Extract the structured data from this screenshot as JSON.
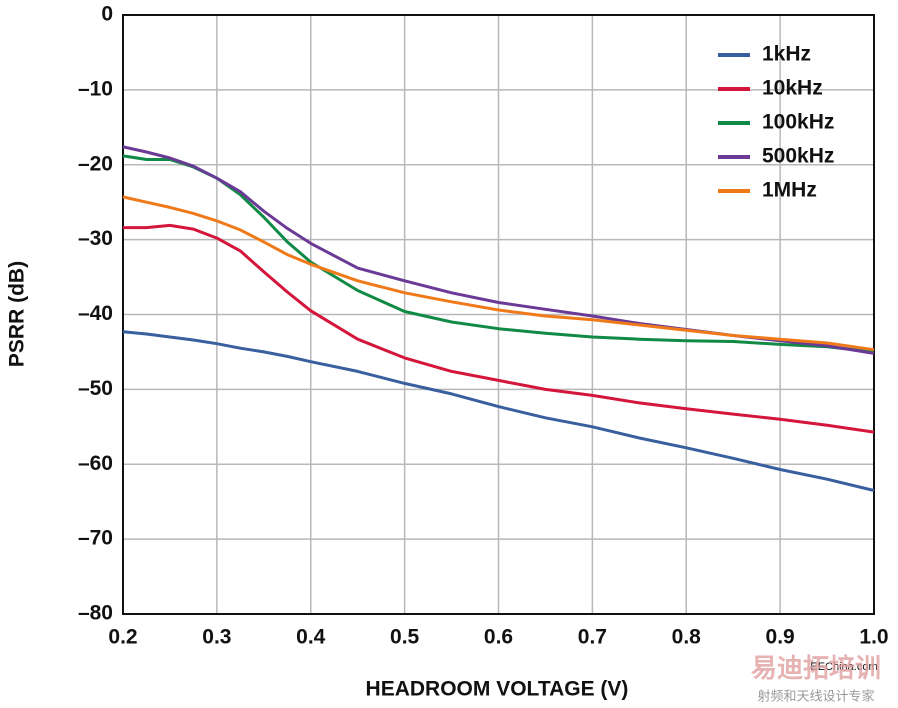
{
  "chart_data": {
    "type": "line",
    "xlabel": "HEADROOM VOLTAGE (V)",
    "ylabel": "PSRR (dB)",
    "x": [
      0.2,
      0.225,
      0.25,
      0.275,
      0.3,
      0.325,
      0.35,
      0.375,
      0.4,
      0.45,
      0.5,
      0.55,
      0.6,
      0.65,
      0.7,
      0.75,
      0.8,
      0.85,
      0.9,
      0.95,
      1.0
    ],
    "series": [
      {
        "name": "1kHz",
        "color": "#3a5f9e",
        "values": [
          -42.3,
          -42.6,
          -43.0,
          -43.4,
          -43.9,
          -44.5,
          -45.0,
          -45.6,
          -46.3,
          -47.6,
          -49.2,
          -50.6,
          -52.3,
          -53.8,
          -55.0,
          -56.5,
          -57.8,
          -59.2,
          -60.7,
          -62.0,
          -63.5
        ]
      },
      {
        "name": "10kHz",
        "color": "#d4163b",
        "values": [
          -28.4,
          -28.4,
          -28.1,
          -28.6,
          -29.8,
          -31.5,
          -34.3,
          -37.0,
          -39.5,
          -43.3,
          -45.8,
          -47.6,
          -48.8,
          -50.0,
          -50.8,
          -51.8,
          -52.6,
          -53.3,
          -54.0,
          -54.8,
          -55.7
        ]
      },
      {
        "name": "100kHz",
        "color": "#108a45",
        "values": [
          -18.8,
          -19.3,
          -19.3,
          -20.3,
          -21.8,
          -24.0,
          -27.0,
          -30.3,
          -33.0,
          -36.8,
          -39.6,
          -41.0,
          -41.9,
          -42.5,
          -43.0,
          -43.3,
          -43.5,
          -43.6,
          -44.0,
          -44.3,
          -45.0
        ]
      },
      {
        "name": "500kHz",
        "color": "#6a3a96",
        "values": [
          -17.6,
          -18.3,
          -19.1,
          -20.2,
          -21.8,
          -23.6,
          -26.2,
          -28.5,
          -30.5,
          -33.8,
          -35.5,
          -37.1,
          -38.4,
          -39.3,
          -40.2,
          -41.2,
          -42.0,
          -42.8,
          -43.5,
          -44.2,
          -45.2
        ]
      },
      {
        "name": "1MHz",
        "color": "#f07a1a",
        "values": [
          -24.3,
          -25.0,
          -25.7,
          -26.5,
          -27.5,
          -28.7,
          -30.3,
          -32.0,
          -33.3,
          -35.5,
          -37.1,
          -38.3,
          -39.4,
          -40.2,
          -40.7,
          -41.4,
          -42.1,
          -42.8,
          -43.3,
          -43.8,
          -44.7
        ]
      }
    ],
    "xlim": [
      0.2,
      1.0
    ],
    "ylim": [
      -80,
      0
    ],
    "xticks": [
      0.2,
      0.3,
      0.4,
      0.5,
      0.6,
      0.7,
      0.8,
      0.9,
      {
        "value": 1.0,
        "label": "1.0"
      }
    ],
    "yticks": [
      0,
      {
        "value": -10,
        "label": "–10"
      },
      {
        "value": -20,
        "label": "–20"
      },
      {
        "value": -30,
        "label": "–30"
      },
      {
        "value": -40,
        "label": "–40"
      },
      {
        "value": -50,
        "label": "–50"
      },
      {
        "value": -60,
        "label": "–60"
      },
      {
        "value": -70,
        "label": "–70"
      },
      {
        "value": -80,
        "label": "–80"
      }
    ],
    "grid": true,
    "legend": "upper right",
    "watermark": [
      "EEChina.com",
      "易迪拓培训",
      "射频和天线设计专家"
    ]
  }
}
